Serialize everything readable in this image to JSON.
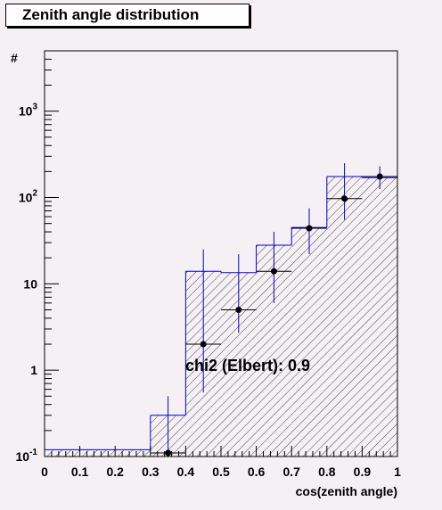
{
  "chart_data": {
    "type": "histogram",
    "title": "Zenith angle distribution",
    "xlabel": "cos(zenith angle)",
    "ylabel": "#",
    "xlim": [
      0,
      1
    ],
    "ylim": [
      0.1,
      5000
    ],
    "y_scale": "log",
    "x_ticks": [
      "0",
      "0.1",
      "0.2",
      "0.3",
      "0.4",
      "0.5",
      "0.6",
      "0.7",
      "0.8",
      "0.9",
      "1"
    ],
    "y_ticks": [
      {
        "value": 0.1,
        "base": "10",
        "exp": "-1"
      },
      {
        "value": 1,
        "base": "1",
        "exp": ""
      },
      {
        "value": 10,
        "base": "10",
        "exp": ""
      },
      {
        "value": 100,
        "base": "10",
        "exp": "2"
      },
      {
        "value": 1000,
        "base": "10",
        "exp": "3"
      }
    ],
    "bin_edges": [
      0,
      0.1,
      0.2,
      0.3,
      0.4,
      0.5,
      0.6,
      0.7,
      0.8,
      0.9,
      1.0
    ],
    "histogram_values": [
      0.12,
      0.12,
      0.12,
      0.3,
      14,
      13.5,
      28,
      45,
      175,
      170
    ],
    "data_points": [
      {
        "x": 0.35,
        "y": 0.11,
        "err_low": 0.1,
        "err_high": 0.5
      },
      {
        "x": 0.45,
        "y": 2,
        "err_low": 0.55,
        "err_high": 25
      },
      {
        "x": 0.55,
        "y": 5,
        "err_low": 2.7,
        "err_high": 22
      },
      {
        "x": 0.65,
        "y": 14,
        "err_low": 6,
        "err_high": 40
      },
      {
        "x": 0.75,
        "y": 44,
        "err_low": 22,
        "err_high": 75
      },
      {
        "x": 0.85,
        "y": 97,
        "err_low": 55,
        "err_high": 250
      },
      {
        "x": 0.95,
        "y": 175,
        "err_low": 125,
        "err_high": 230
      }
    ],
    "annotation": "chi2 (Elbert): 0.9",
    "colors": {
      "histogram": "#0000cc",
      "points": "#000000",
      "hatch": "#000000"
    }
  }
}
